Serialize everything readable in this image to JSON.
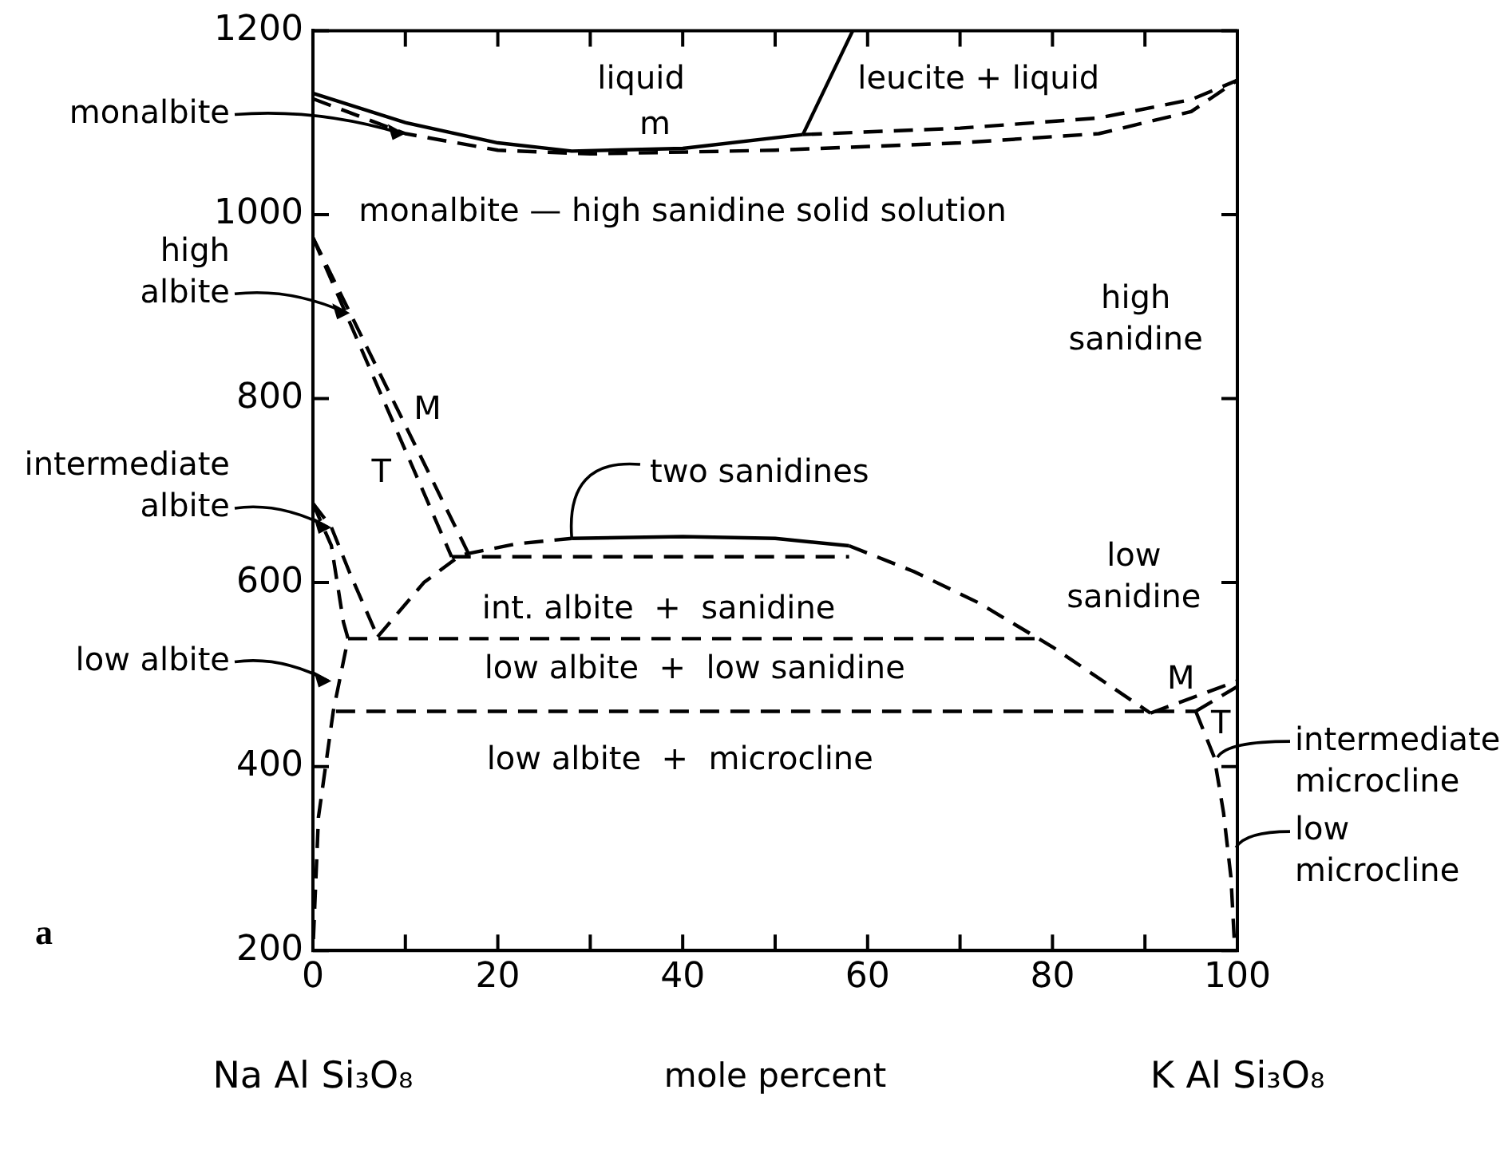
{
  "chart_data": {
    "type": "line",
    "xlabel": "mole percent",
    "xlim": [
      0,
      100
    ],
    "ylim": [
      200,
      1200
    ],
    "xticks": [
      0,
      {
        "value": 10,
        "label": null
      },
      20,
      {
        "value": 30,
        "label": null
      },
      40,
      {
        "value": 50,
        "label": null
      },
      60,
      {
        "value": 70,
        "label": null
      },
      80,
      {
        "value": 90,
        "label": null
      },
      100
    ],
    "yticks": [
      200,
      400,
      600,
      800,
      1000,
      1200
    ],
    "grid": false,
    "legend": false,
    "marker": "none",
    "series": [
      {
        "color": "#000000",
        "line_style": "solid",
        "x": [
          0,
          10,
          20,
          28,
          40,
          53
        ],
        "values": [
          1132,
          1100,
          1078,
          1069,
          1072,
          1087
        ]
      },
      {
        "color": "#000000",
        "line_style": "solid",
        "x": [
          53,
          58.4
        ],
        "values": [
          1087,
          1200
        ]
      },
      {
        "color": "#000000",
        "line_style": "dashed",
        "x": [
          53,
          70,
          85,
          95,
          100
        ],
        "values": [
          1087,
          1094,
          1105,
          1125,
          1146
        ]
      },
      {
        "color": "#000000",
        "line_style": "dashed",
        "x": [
          0,
          10,
          20,
          30,
          50,
          70,
          85,
          95,
          100
        ],
        "values": [
          1126,
          1088,
          1070,
          1066,
          1070,
          1078,
          1088,
          1112,
          1146
        ]
      },
      {
        "color": "#000000",
        "line_style": "dashed",
        "x": [
          0,
          17
        ],
        "values": [
          975,
          628
        ]
      },
      {
        "color": "#000000",
        "line_style": "dashed",
        "x": [
          0,
          15
        ],
        "values": [
          975,
          628
        ]
      },
      {
        "color": "#000000",
        "line_style": "dashed",
        "x": [
          7,
          12,
          16,
          22,
          28
        ],
        "values": [
          541,
          600,
          630,
          642,
          648
        ]
      },
      {
        "color": "#000000",
        "line_style": "solid",
        "x": [
          28,
          40,
          50,
          58
        ],
        "values": [
          648,
          650,
          648,
          640
        ]
      },
      {
        "color": "#000000",
        "line_style": "dashed",
        "x": [
          58,
          65,
          72,
          80,
          90.6
        ],
        "values": [
          640,
          612,
          578,
          530,
          458
        ]
      },
      {
        "color": "#000000",
        "line_style": "dashed",
        "x": [
          15,
          58
        ],
        "values": [
          628,
          628
        ]
      },
      {
        "color": "#000000",
        "line_style": "dashed",
        "x": [
          3.8,
          79
        ],
        "values": [
          539,
          539
        ]
      },
      {
        "color": "#000000",
        "line_style": "dashed",
        "x": [
          2.5,
          95.5
        ],
        "values": [
          460,
          460
        ]
      },
      {
        "color": "#000000",
        "line_style": "dashed",
        "x": [
          0,
          2,
          4,
          7
        ],
        "values": [
          686,
          660,
          610,
          541
        ]
      },
      {
        "color": "#000000",
        "line_style": "dashed",
        "x": [
          0,
          2,
          3.3,
          3.8,
          2.2,
          0.6,
          0
        ],
        "values": [
          686,
          640,
          557,
          539,
          460,
          345,
          200
        ]
      },
      {
        "color": "#000000",
        "line_style": "dashed",
        "x": [
          90.6,
          100
        ],
        "values": [
          458,
          493
        ]
      },
      {
        "color": "#000000",
        "line_style": "dashed",
        "x": [
          95.5,
          100
        ],
        "values": [
          460,
          487
        ]
      },
      {
        "color": "#000000",
        "line_style": "dashed",
        "x": [
          95.5,
          97.5,
          98.5,
          99.3,
          99.7
        ],
        "values": [
          460,
          410,
          350,
          280,
          205
        ]
      }
    ],
    "annotations": [
      "liquid",
      "leucite + liquid",
      "m",
      "monalbite — high sanidine solid solution",
      "high\nsanidine",
      "M",
      "T",
      {
        "text": "two sanidines",
        "x": 28,
        "y": 648
      },
      "int. albite  +  sanidine",
      "low\nsanidine",
      "low albite  +  low sanidine",
      "low albite  +  microcline",
      "M",
      "T",
      {
        "text": "monalbite",
        "x": 10,
        "y": 1088
      },
      {
        "text": "high\nalbite",
        "x": 4,
        "y": 893
      },
      {
        "text": "intermediate\nalbite",
        "x": 2,
        "y": 660
      },
      {
        "text": "low albite",
        "x": 2,
        "y": 493
      },
      {
        "text": "intermediate\nmicrocline",
        "x": 97.5,
        "y": 410
      },
      {
        "text": "low\nmicrocline",
        "x": 99.5,
        "y": 312
      },
      "Na Al Si₃O₈",
      "K Al Si₃O₈",
      "a"
    ]
  }
}
